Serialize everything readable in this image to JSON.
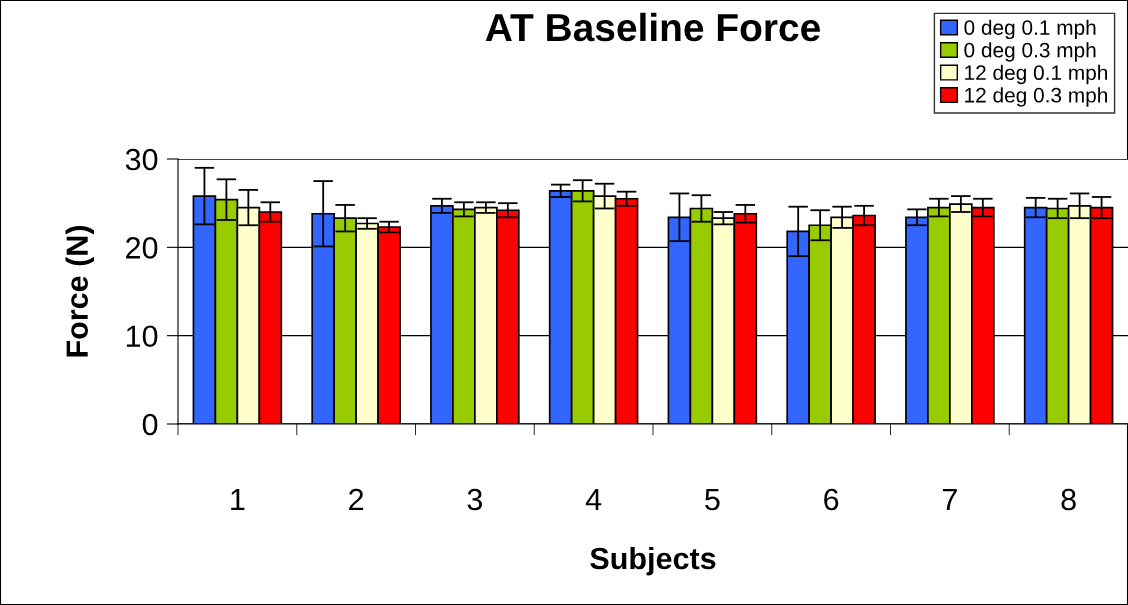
{
  "chart_data": {
    "type": "bar",
    "title": "AT Baseline Force",
    "xlabel": "Subjects",
    "ylabel": "Force (N)",
    "categories": [
      "1",
      "2",
      "3",
      "4",
      "5",
      "6",
      "7",
      "8"
    ],
    "series": [
      {
        "name": "0 deg 0.1 mph",
        "color": "#3366ff",
        "values": [
          25.8,
          23.8,
          24.7,
          26.4,
          23.4,
          21.8,
          23.4,
          24.5
        ],
        "errors": [
          3.2,
          3.7,
          0.8,
          0.7,
          2.7,
          2.8,
          0.9,
          1.1
        ]
      },
      {
        "name": "0 deg 0.3 mph",
        "color": "#99cc00",
        "values": [
          25.4,
          23.3,
          24.3,
          26.4,
          24.4,
          22.5,
          24.5,
          24.4
        ],
        "errors": [
          2.3,
          1.5,
          0.8,
          1.2,
          1.5,
          1.7,
          1.0,
          1.1
        ]
      },
      {
        "name": "12 deg 0.1 mph",
        "color": "#ffffcc",
        "values": [
          24.5,
          22.7,
          24.5,
          25.8,
          23.3,
          23.4,
          24.9,
          24.7
        ],
        "errors": [
          2.0,
          0.6,
          0.6,
          1.4,
          0.7,
          1.2,
          0.9,
          1.4
        ]
      },
      {
        "name": "12 deg 0.3 mph",
        "color": "#ff0000",
        "values": [
          24.0,
          22.3,
          24.2,
          25.5,
          23.8,
          23.6,
          24.5,
          24.5
        ],
        "errors": [
          1.1,
          0.6,
          0.8,
          0.8,
          1.0,
          1.1,
          1.0,
          1.2
        ]
      }
    ],
    "ylim": [
      0,
      30
    ],
    "yticks": [
      0,
      10,
      20,
      30
    ],
    "grid": "y",
    "legend": "top right"
  }
}
